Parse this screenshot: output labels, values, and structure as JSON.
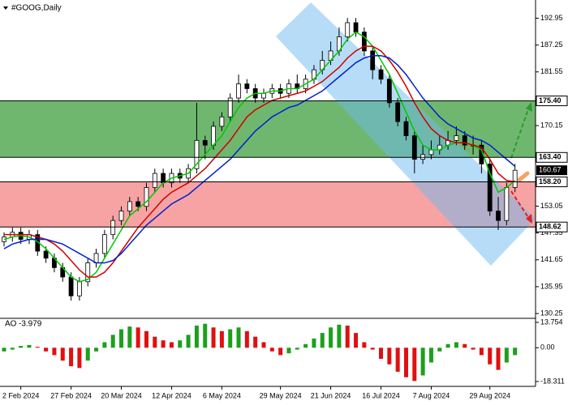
{
  "chart_data": {
    "type": "candlestick",
    "title": "#GOOG,Daily",
    "categories": [
      null,
      null,
      "2 Feb 2024",
      null,
      null,
      null,
      null,
      null,
      "27 Feb 2024",
      null,
      null,
      null,
      null,
      null,
      "20 Mar 2024",
      null,
      null,
      null,
      null,
      null,
      "12 Apr 2024",
      null,
      null,
      null,
      null,
      null,
      "6 May 2024",
      null,
      null,
      null,
      null,
      null,
      null,
      "29 May 2024",
      null,
      null,
      null,
      null,
      null,
      "21 Jun 2024",
      null,
      null,
      null,
      null,
      null,
      "16 Jul 2024",
      null,
      null,
      null,
      null,
      null,
      "7 Aug 2024",
      null,
      null,
      null,
      null,
      null,
      null,
      "29 Aug 2024",
      null,
      null,
      null
    ],
    "ohlc": [
      [
        145.5,
        147.5,
        144.5,
        146.5
      ],
      [
        146.5,
        148.5,
        145.5,
        147.5
      ],
      [
        147.5,
        148.5,
        145,
        146
      ],
      [
        146,
        148,
        145,
        147
      ],
      [
        147,
        148,
        142.5,
        143.5
      ],
      [
        143.5,
        144.5,
        141,
        142
      ],
      [
        142,
        143,
        139,
        140
      ],
      [
        140,
        141,
        137,
        138
      ],
      [
        138,
        139,
        133,
        134
      ],
      [
        134,
        138,
        133,
        137
      ],
      [
        137,
        142,
        136,
        141
      ],
      [
        141,
        144,
        140,
        143
      ],
      [
        143,
        148,
        142,
        147
      ],
      [
        147,
        151,
        146,
        150
      ],
      [
        150,
        153,
        149,
        152
      ],
      [
        152,
        155,
        151,
        154
      ],
      [
        154,
        155,
        152,
        153
      ],
      [
        153,
        158,
        152,
        157
      ],
      [
        157,
        161,
        156,
        160
      ],
      [
        160,
        161,
        157,
        158
      ],
      [
        158,
        161,
        157,
        160
      ],
      [
        160,
        161,
        158,
        159
      ],
      [
        159,
        162,
        158,
        161
      ],
      [
        161,
        175,
        160,
        167
      ],
      [
        167,
        168,
        163,
        166
      ],
      [
        166,
        171,
        165,
        170
      ],
      [
        170,
        173,
        169,
        172
      ],
      [
        172,
        177,
        171,
        176
      ],
      [
        176,
        181,
        175,
        179
      ],
      [
        179,
        180,
        177,
        178
      ],
      [
        178,
        179,
        175,
        176
      ],
      [
        176,
        178,
        175,
        177
      ],
      [
        177,
        179,
        176,
        178
      ],
      [
        178,
        179,
        176,
        177
      ],
      [
        177,
        180,
        176,
        179
      ],
      [
        179,
        181,
        177,
        178
      ],
      [
        178,
        181,
        177,
        180
      ],
      [
        180,
        183,
        179,
        182
      ],
      [
        182,
        186,
        181,
        184
      ],
      [
        184,
        188,
        183,
        186
      ],
      [
        186,
        191,
        185,
        189
      ],
      [
        189,
        193,
        188,
        192
      ],
      [
        192,
        193,
        189,
        190
      ],
      [
        190,
        191,
        185,
        186
      ],
      [
        186,
        187,
        180,
        182
      ],
      [
        182,
        183,
        179,
        180
      ],
      [
        180,
        181,
        174,
        175
      ],
      [
        175,
        176,
        170,
        171
      ],
      [
        171,
        172,
        167,
        168
      ],
      [
        168,
        169,
        160,
        163
      ],
      [
        163,
        166,
        162,
        164
      ],
      [
        164,
        167,
        163,
        165
      ],
      [
        165,
        168,
        164,
        166
      ],
      [
        166,
        169,
        165,
        167
      ],
      [
        167,
        170,
        166,
        168
      ],
      [
        168,
        169,
        165,
        166
      ],
      [
        166,
        168,
        164,
        166
      ],
      [
        166,
        167,
        160,
        162
      ],
      [
        162,
        163,
        151,
        152
      ],
      [
        152,
        155,
        148,
        150
      ],
      [
        150,
        158,
        149,
        157
      ],
      [
        157,
        162,
        156,
        160.67
      ]
    ],
    "up_color": "#ffffff",
    "down_color": "#000000",
    "moving_averages": [
      {
        "color": "#00c800",
        "values": [
          146,
          146.5,
          146.8,
          146.5,
          145.5,
          144,
          142,
          140,
          138,
          137,
          137.5,
          139,
          142,
          145,
          148,
          151,
          152.5,
          154,
          156,
          158,
          159,
          159.5,
          160,
          162,
          164,
          166,
          168,
          171,
          174,
          176,
          177,
          177,
          177.5,
          177.5,
          178,
          178,
          179,
          180,
          182,
          184,
          186,
          188.5,
          190,
          189,
          187,
          184,
          181,
          177,
          173,
          169,
          166,
          165,
          165,
          166,
          166.5,
          166.5,
          166,
          165,
          160,
          156,
          157,
          158.5
        ]
      },
      {
        "color": "#d00000",
        "values": [
          147,
          147,
          147,
          147,
          146.5,
          146,
          145,
          143.5,
          141.5,
          139.5,
          138,
          138,
          139,
          141,
          143.5,
          146,
          148.5,
          150.5,
          152.5,
          154.5,
          156,
          157,
          158,
          159.5,
          161,
          163,
          165,
          167,
          169.5,
          172,
          173.5,
          174.5,
          175.5,
          176,
          176.5,
          177,
          177.5,
          178.5,
          179.5,
          181,
          182.5,
          184.5,
          186,
          187,
          187,
          186,
          184,
          181.5,
          178.5,
          175,
          172,
          169.5,
          168,
          167,
          166.5,
          166.5,
          166,
          165.5,
          163,
          160,
          158.5,
          158.2
        ]
      },
      {
        "color": "#0020d0",
        "values": [
          144,
          145,
          145.5,
          146,
          146,
          146,
          145.5,
          145,
          144,
          143,
          142,
          141,
          141,
          141.5,
          143,
          145,
          147,
          149,
          150.5,
          152,
          153.5,
          154.5,
          155.5,
          157,
          158.5,
          160,
          161.5,
          163,
          165,
          167,
          169,
          170.5,
          172,
          173,
          174,
          174.5,
          175.5,
          176.5,
          177.5,
          179,
          180.5,
          182,
          183.5,
          184.5,
          185,
          185,
          184.5,
          183,
          181,
          178.5,
          176,
          174,
          172,
          170.5,
          169.5,
          168.5,
          167.5,
          167,
          166,
          164.5,
          163,
          161.5
        ]
      }
    ],
    "zones": [
      {
        "color": "#6fb76f",
        "upper": {
          "value": 175.4,
          "label": "175.40"
        },
        "lower": {
          "value": 163.4,
          "label": "163.40"
        }
      },
      {
        "color": "#f7a3a3",
        "upper": {
          "value": 158.2,
          "label": "158.20"
        },
        "lower": {
          "value": 148.62,
          "label": "148.62"
        }
      }
    ],
    "last_label": "160.67",
    "ylim": [
      129.4,
      196.3
    ],
    "yticks": [
      192.95,
      187.25,
      181.55,
      170.15,
      153.05,
      147.35,
      141.65,
      135.95,
      130.25
    ],
    "ao": {
      "title": "AO",
      "up_color": "#1ca01c",
      "down_color": "#e01010",
      "values": [
        -2,
        -1,
        1,
        1.5,
        0.5,
        -2,
        -4,
        -7,
        -10,
        -11,
        -7,
        -2,
        3,
        7,
        10,
        11.5,
        11,
        9,
        6,
        4,
        3,
        4,
        7,
        12,
        13,
        11,
        9,
        10,
        11,
        9,
        6,
        3,
        -2,
        -4,
        -3,
        -1,
        2,
        5,
        8,
        11,
        12.5,
        12,
        8,
        3,
        -1,
        -6,
        -9,
        -13,
        -16,
        -18,
        -15,
        -8,
        -2,
        2,
        3,
        2,
        -1,
        -4,
        -9,
        -12,
        -8,
        -3.979
      ],
      "ylim": [
        -20.5,
        15.5
      ],
      "yticks": [
        13.754,
        {
          "value": 0,
          "label": "0.00"
        },
        -18.311
      ]
    }
  }
}
